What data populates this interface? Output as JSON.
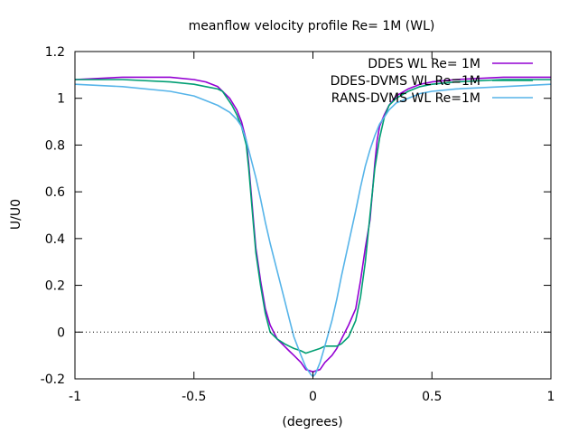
{
  "chart_data": {
    "type": "line",
    "title": "meanflow velocity profile  Re= 1M (WL)",
    "xlabel": "(degrees)",
    "ylabel": "U/U0",
    "xlim": [
      -1,
      1
    ],
    "ylim": [
      -0.2,
      1.2
    ],
    "xticks": [
      -1,
      -0.5,
      0,
      0.5,
      1
    ],
    "xtick_labels": [
      "-1",
      "-0.5",
      "0",
      "0.5",
      "1"
    ],
    "yticks": [
      -0.2,
      0,
      0.2,
      0.4,
      0.6,
      0.8,
      1,
      1.2
    ],
    "ytick_labels": [
      "-0.2",
      "0",
      "0.2",
      "0.4",
      "0.6",
      "0.8",
      "1",
      "1.2"
    ],
    "grid": false,
    "zero_line": "dotted",
    "legend_position": "top-right",
    "series": [
      {
        "name": "DDES WL Re= 1M",
        "color": "#9400d3",
        "x": [
          -1.0,
          -0.8,
          -0.6,
          -0.5,
          -0.45,
          -0.4,
          -0.35,
          -0.32,
          -0.3,
          -0.28,
          -0.27,
          -0.26,
          -0.25,
          -0.24,
          -0.22,
          -0.2,
          -0.18,
          -0.15,
          -0.12,
          -0.1,
          -0.08,
          -0.05,
          -0.03,
          0.0,
          0.03,
          0.05,
          0.08,
          0.1,
          0.12,
          0.15,
          0.18,
          0.2,
          0.22,
          0.24,
          0.25,
          0.26,
          0.27,
          0.28,
          0.3,
          0.32,
          0.35,
          0.4,
          0.45,
          0.5,
          0.6,
          0.8,
          1.0
        ],
        "y": [
          1.08,
          1.09,
          1.09,
          1.08,
          1.07,
          1.05,
          1.0,
          0.95,
          0.9,
          0.82,
          0.72,
          0.6,
          0.48,
          0.36,
          0.22,
          0.1,
          0.03,
          -0.03,
          -0.06,
          -0.08,
          -0.1,
          -0.13,
          -0.16,
          -0.17,
          -0.16,
          -0.13,
          -0.1,
          -0.07,
          -0.03,
          0.03,
          0.1,
          0.22,
          0.36,
          0.48,
          0.6,
          0.72,
          0.82,
          0.88,
          0.93,
          0.97,
          1.01,
          1.04,
          1.06,
          1.07,
          1.08,
          1.09,
          1.09
        ]
      },
      {
        "name": "DDES-DVMS WL Re=1M",
        "color": "#009e73",
        "x": [
          -1.0,
          -0.8,
          -0.6,
          -0.5,
          -0.45,
          -0.4,
          -0.38,
          -0.36,
          -0.34,
          -0.32,
          -0.3,
          -0.28,
          -0.27,
          -0.26,
          -0.25,
          -0.24,
          -0.22,
          -0.2,
          -0.18,
          -0.15,
          -0.12,
          -0.1,
          -0.08,
          -0.05,
          -0.03,
          0.0,
          0.03,
          0.05,
          0.08,
          0.1,
          0.12,
          0.15,
          0.18,
          0.2,
          0.22,
          0.24,
          0.26,
          0.28,
          0.3,
          0.32,
          0.35,
          0.4,
          0.45,
          0.5,
          0.6,
          0.8,
          1.0
        ],
        "y": [
          1.08,
          1.08,
          1.07,
          1.06,
          1.05,
          1.04,
          1.03,
          1.0,
          0.97,
          0.93,
          0.88,
          0.8,
          0.7,
          0.58,
          0.46,
          0.34,
          0.2,
          0.08,
          0.0,
          -0.03,
          -0.05,
          -0.06,
          -0.07,
          -0.08,
          -0.09,
          -0.08,
          -0.07,
          -0.06,
          -0.06,
          -0.06,
          -0.05,
          -0.02,
          0.05,
          0.15,
          0.3,
          0.5,
          0.7,
          0.83,
          0.92,
          0.97,
          1.0,
          1.03,
          1.05,
          1.06,
          1.07,
          1.08,
          1.08
        ]
      },
      {
        "name": "RANS-DVMS WL Re=1M",
        "color": "#56b4e9",
        "x": [
          -1.0,
          -0.8,
          -0.6,
          -0.5,
          -0.45,
          -0.4,
          -0.35,
          -0.32,
          -0.3,
          -0.28,
          -0.26,
          -0.24,
          -0.22,
          -0.2,
          -0.18,
          -0.15,
          -0.12,
          -0.1,
          -0.08,
          -0.05,
          -0.03,
          -0.01,
          0.0,
          0.01,
          0.03,
          0.05,
          0.08,
          0.1,
          0.12,
          0.15,
          0.18,
          0.2,
          0.22,
          0.24,
          0.26,
          0.28,
          0.3,
          0.32,
          0.35,
          0.4,
          0.45,
          0.5,
          0.6,
          0.8,
          1.0
        ],
        "y": [
          1.06,
          1.05,
          1.03,
          1.01,
          0.99,
          0.97,
          0.94,
          0.91,
          0.88,
          0.82,
          0.74,
          0.66,
          0.57,
          0.47,
          0.38,
          0.26,
          0.14,
          0.06,
          -0.02,
          -0.1,
          -0.15,
          -0.18,
          -0.19,
          -0.18,
          -0.13,
          -0.06,
          0.05,
          0.14,
          0.24,
          0.38,
          0.52,
          0.62,
          0.71,
          0.78,
          0.84,
          0.89,
          0.92,
          0.95,
          0.98,
          1.0,
          1.02,
          1.03,
          1.04,
          1.05,
          1.06
        ]
      }
    ]
  }
}
